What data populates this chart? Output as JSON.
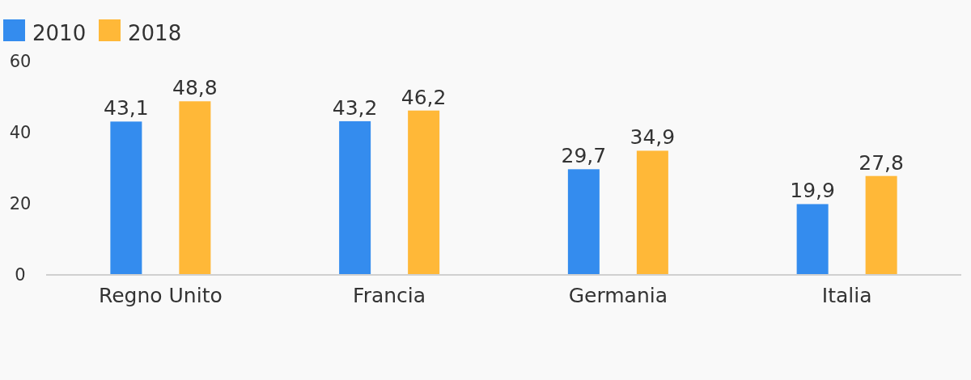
{
  "chart_data": {
    "type": "bar",
    "categories": [
      "Regno Unito",
      "Francia",
      "Germania",
      "Italia"
    ],
    "series": [
      {
        "name": "2010",
        "color": "#348cee",
        "values": [
          43.1,
          43.2,
          29.7,
          19.9
        ],
        "value_labels": [
          "43,1",
          "43,2",
          "29,7",
          "19,9"
        ]
      },
      {
        "name": "2018",
        "color": "#ffb838",
        "values": [
          48.8,
          46.2,
          34.9,
          27.8
        ],
        "value_labels": [
          "48,8",
          "46,2",
          "34,9",
          "27,8"
        ]
      }
    ],
    "ylim": [
      0,
      60
    ],
    "yticks": [
      0,
      20,
      40,
      60
    ],
    "grid": false,
    "legend": "top left"
  }
}
